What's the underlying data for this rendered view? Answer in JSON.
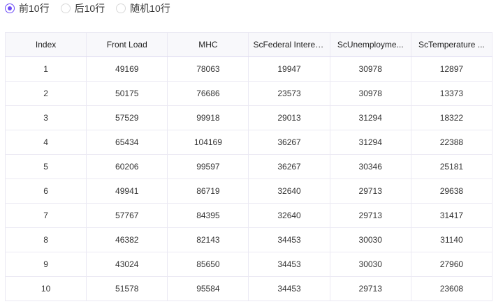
{
  "radios": [
    {
      "label": "前10行",
      "selected": true
    },
    {
      "label": "后10行",
      "selected": false
    },
    {
      "label": "随机10行",
      "selected": false
    }
  ],
  "accent": "#6d4cf6",
  "table": {
    "headers": [
      "Index",
      "Front Load",
      "MHC",
      "ScFederal Interes...",
      "ScUnemployme...",
      "ScTemperature ..."
    ],
    "rows": [
      [
        "1",
        "49169",
        "78063",
        "19947",
        "30978",
        "12897"
      ],
      [
        "2",
        "50175",
        "76686",
        "23573",
        "30978",
        "13373"
      ],
      [
        "3",
        "57529",
        "99918",
        "29013",
        "31294",
        "18322"
      ],
      [
        "4",
        "65434",
        "104169",
        "36267",
        "31294",
        "22388"
      ],
      [
        "5",
        "60206",
        "99597",
        "36267",
        "30346",
        "25181"
      ],
      [
        "6",
        "49941",
        "86719",
        "32640",
        "29713",
        "29638"
      ],
      [
        "7",
        "57767",
        "84395",
        "32640",
        "29713",
        "31417"
      ],
      [
        "8",
        "46382",
        "82143",
        "34453",
        "30030",
        "31140"
      ],
      [
        "9",
        "43024",
        "85650",
        "34453",
        "30030",
        "27960"
      ],
      [
        "10",
        "51578",
        "95584",
        "34453",
        "29713",
        "23608"
      ]
    ]
  }
}
